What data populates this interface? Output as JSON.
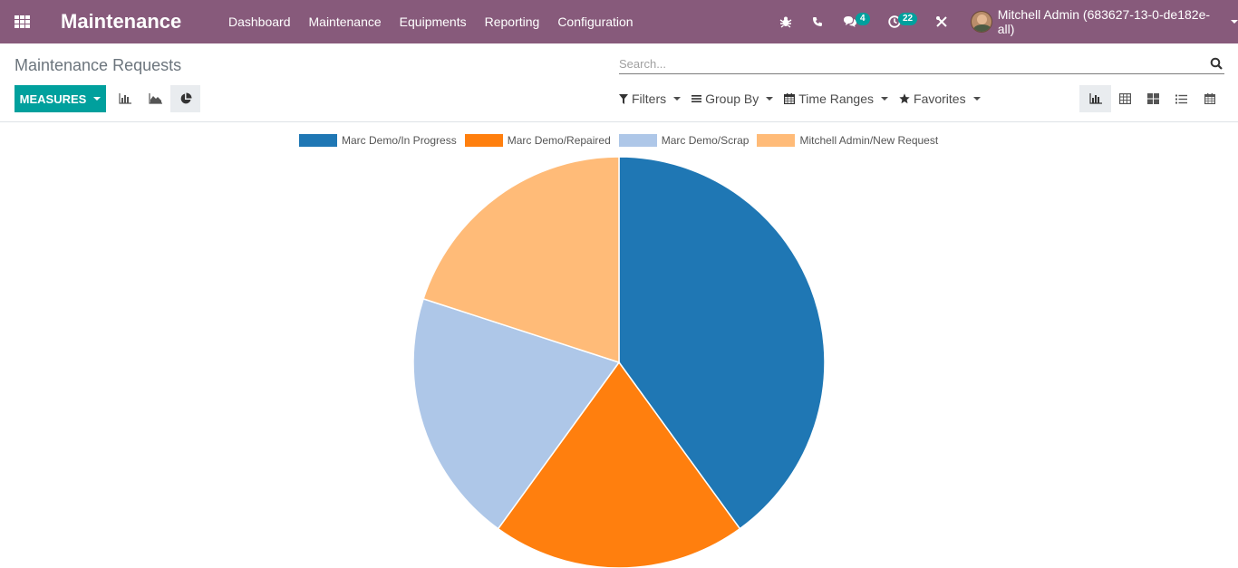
{
  "navbar": {
    "brand": "Maintenance",
    "menu": [
      "Dashboard",
      "Maintenance",
      "Equipments",
      "Reporting",
      "Configuration"
    ],
    "messages_count": "4",
    "activities_count": "22",
    "user": "Mitchell Admin (683627-13-0-de182e-all)"
  },
  "control_panel": {
    "breadcrumb": "Maintenance Requests",
    "search_placeholder": "Search...",
    "measures_label": "MEASURES",
    "filters_label": "Filters",
    "groupby_label": "Group By",
    "timeranges_label": "Time Ranges",
    "favorites_label": "Favorites"
  },
  "chart_data": {
    "type": "pie",
    "categories": [
      "Marc Demo/In Progress",
      "Marc Demo/Repaired",
      "Marc Demo/Scrap",
      "Mitchell Admin/New Request"
    ],
    "values": [
      2,
      1,
      1,
      1
    ],
    "colors": [
      "#1f77b4",
      "#ff7f0e",
      "#aec7e8",
      "#ffbb78"
    ],
    "legend_position": "top"
  }
}
